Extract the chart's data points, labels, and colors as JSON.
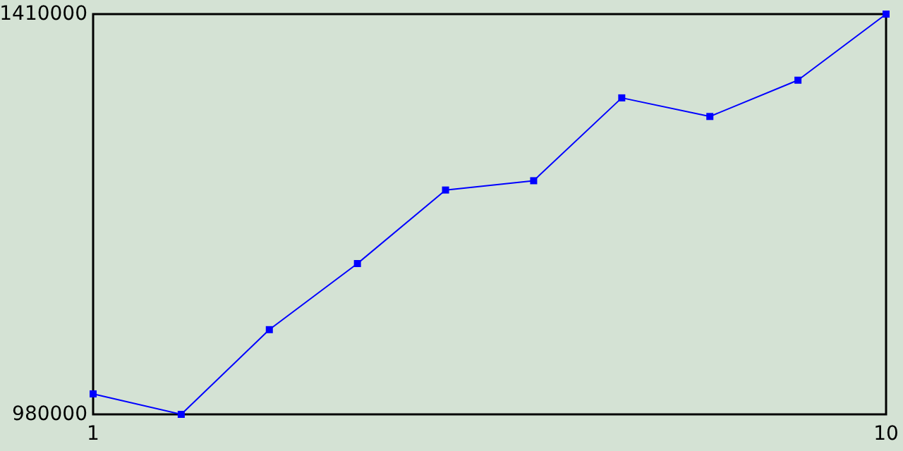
{
  "chart_data": {
    "type": "line",
    "x": [
      1,
      2,
      3,
      4,
      5,
      6,
      7,
      8,
      9,
      10
    ],
    "series": [
      {
        "color": "#0000ff",
        "values": [
          1002000,
          980000,
          1071000,
          1142000,
          1221000,
          1231000,
          1320000,
          1300000,
          1339000,
          1410000
        ]
      }
    ],
    "xlim": [
      1,
      10
    ],
    "xticks": [
      1,
      10
    ],
    "ylim": [
      980000,
      1410000
    ],
    "yticks": [
      980000,
      1410000
    ],
    "marker": "square",
    "grid": false
  }
}
